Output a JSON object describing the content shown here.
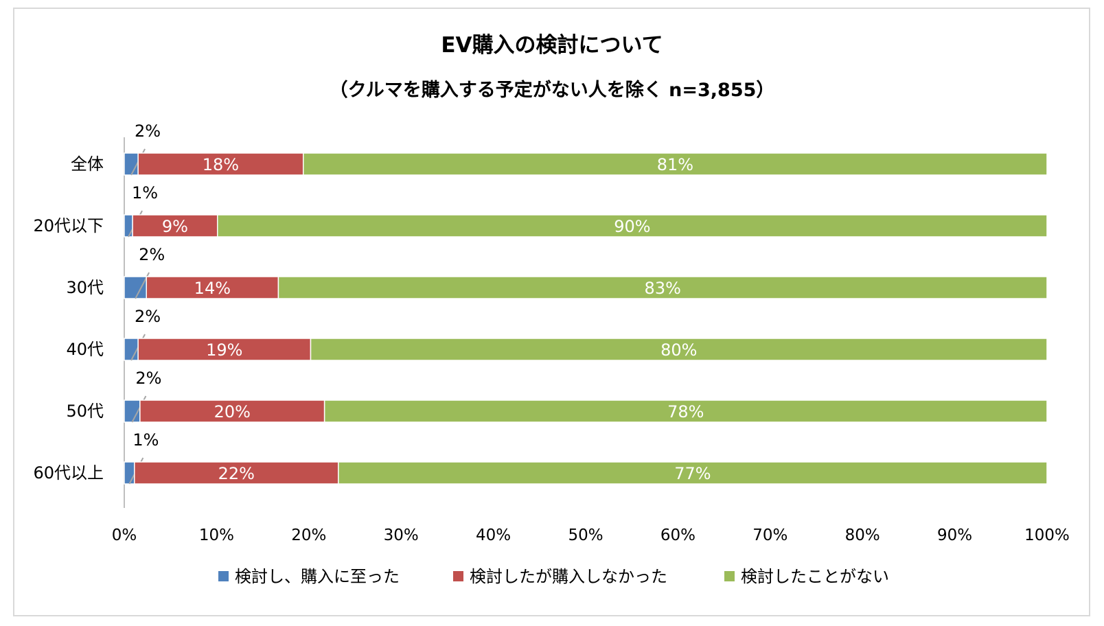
{
  "chart_data": {
    "type": "bar",
    "orientation": "horizontal",
    "stacked": "percent",
    "title": "EV購入の検討について",
    "subtitle": "（クルマを購入する予定がない人を除く n=3,855）",
    "categories": [
      "全体",
      "20代以下",
      "30代",
      "40代",
      "50代",
      "60代以上"
    ],
    "series": [
      {
        "name": "検討し、購入に至った",
        "color": "#4f81bd",
        "values": [
          1.5,
          0.9,
          2.4,
          1.5,
          1.7,
          1.1
        ],
        "labels": [
          "2%",
          "1%",
          "2%",
          "2%",
          "2%",
          "1%"
        ]
      },
      {
        "name": "検討したが購入しなかった",
        "color": "#c0504d",
        "values": [
          17.9,
          9.2,
          14.3,
          18.7,
          20.0,
          22.1
        ],
        "labels": [
          "18%",
          "9%",
          "14%",
          "19%",
          "20%",
          "22%"
        ]
      },
      {
        "name": "検討したことがない",
        "color": "#9bbb59",
        "values": [
          80.6,
          89.9,
          83.3,
          79.8,
          78.3,
          76.8
        ],
        "labels": [
          "81%",
          "90%",
          "83%",
          "80%",
          "78%",
          "77%"
        ]
      }
    ],
    "xlim": [
      0,
      100
    ],
    "xticks": [
      "0%",
      "10%",
      "20%",
      "30%",
      "40%",
      "50%",
      "60%",
      "70%",
      "80%",
      "90%",
      "100%"
    ],
    "grid": false,
    "legend": "bottom"
  }
}
